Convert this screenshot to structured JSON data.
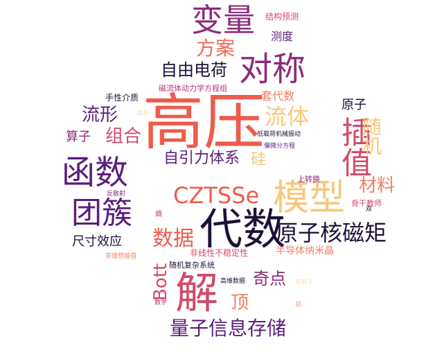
{
  "words": {
    "gaoya": "高压",
    "bianliang": "变量",
    "duicheng": "对称",
    "fangan": "方案",
    "ziyoudianhe": "自由电荷",
    "jiegouyuce": "结构预测",
    "cedu": "测度",
    "liuti": "流体",
    "taodaishu": "套代数",
    "cichuan": "磁流体动力学方程组",
    "shouxingjiezhi": "手性介质",
    "yuanzi": "原子",
    "liuxing": "流形",
    "suanzi": "算子",
    "zuhe": "组合",
    "chazhi": "插值",
    "suiji": "随机",
    "hanshu": "函数",
    "ziyinli": "自引力体系",
    "gui": "硅",
    "dizaihe": "低载荷机械振动",
    "pianweifen": "偏微分方程",
    "czts": "CZTSSe",
    "moxing": "模型",
    "shangzhuanhuan": "上转换",
    "cailiao": "材料",
    "tuancu": "团簇",
    "fanshe": "反散射",
    "gugan": "骨干教师",
    "shuang": "双",
    "shang": "熵",
    "daishu": "代数",
    "yuanzihe": "原子核磁矩",
    "shuju": "数据",
    "chicun": "尺寸效应",
    "bandaoti": "半导体纳米晶",
    "feixianxing": "非线性不稳定性",
    "feiyangtiao": "非理想插值",
    "suijifuza": "随机复杂系统",
    "bott": "Bott",
    "jie": "解",
    "qidian": "奇点",
    "gaowei": "高维数据",
    "shuxue": "数学",
    "ding": "顶",
    "liangzi": "量子信息存储",
    "faint1": "高校",
    "faint2": "奇异子",
    "faint3": "",
    "faint4": "装"
  },
  "palette": {
    "red": "#ee5b4c",
    "salmon": "#f08062",
    "peach": "#f6a56b",
    "gold": "#f7c87a",
    "magenta": "#b5367a",
    "plum": "#8b2c7b",
    "violet": "#5a1e7c",
    "navy": "#1d1138",
    "rose": "#d24a68"
  }
}
